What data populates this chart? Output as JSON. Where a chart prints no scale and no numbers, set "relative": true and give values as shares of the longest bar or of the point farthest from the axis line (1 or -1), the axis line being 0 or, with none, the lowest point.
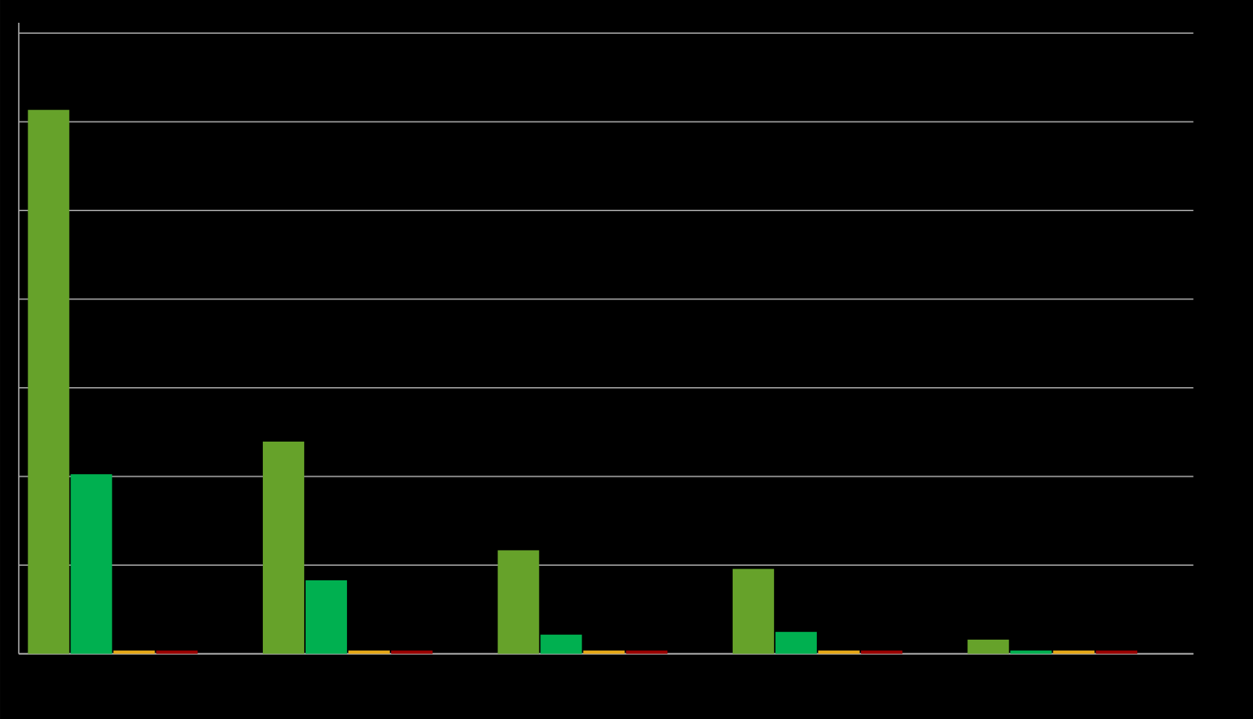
{
  "chart_data": {
    "type": "bar",
    "relative": true,
    "grid": "y",
    "categories": [
      null,
      null,
      null,
      null,
      null
    ],
    "series": [
      {
        "color": "#66a22a",
        "values": [
          1,
          0.39,
          0.19,
          0.156,
          0.026
        ]
      },
      {
        "color": "#00b050",
        "values": [
          0.33,
          0.135,
          0.035,
          0.04,
          0.006
        ]
      },
      {
        "color": "#e6a817",
        "values": [
          0.006,
          0.006,
          0.006,
          0.006,
          0.006
        ]
      },
      {
        "color": "#990000",
        "values": [
          0.006,
          0.006,
          0.006,
          0.006,
          0.006
        ]
      }
    ]
  }
}
